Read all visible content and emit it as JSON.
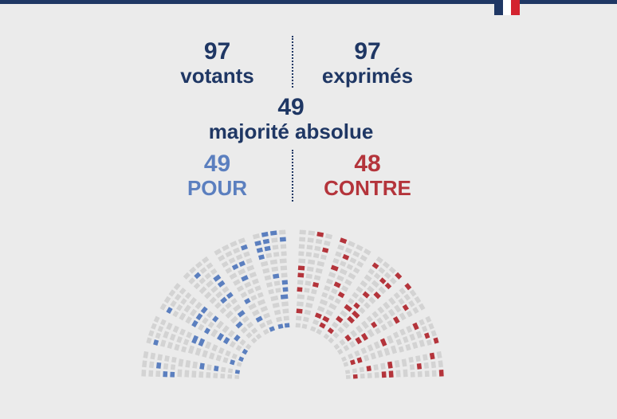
{
  "header": {
    "flag_colors": [
      "#1f3764",
      "#ffffff",
      "#d3232f"
    ]
  },
  "stats": {
    "votants": {
      "value": "97",
      "label": "votants"
    },
    "exprimes": {
      "value": "97",
      "label": "exprimés"
    },
    "majorite": {
      "value": "49",
      "label": "majorité absolue"
    },
    "pour": {
      "value": "49",
      "label": "POUR"
    },
    "contre": {
      "value": "48",
      "label": "CONTRE"
    }
  },
  "colors": {
    "navy": "#1f3764",
    "pour": "#5b7fbf",
    "contre": "#b4343b",
    "empty_seat": "#d3d3d3",
    "background": "#ebebeb"
  },
  "chart_data": {
    "type": "hemicycle",
    "total_votes": 97,
    "series": [
      {
        "name": "POUR",
        "value": 49,
        "color": "#5b7fbf"
      },
      {
        "name": "CONTRE",
        "value": 48,
        "color": "#b4343b"
      }
    ]
  }
}
